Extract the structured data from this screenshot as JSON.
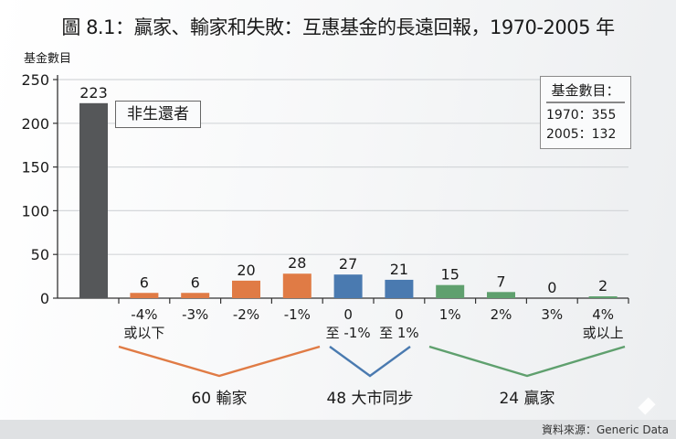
{
  "title": "圖 8.1：贏家、輸家和失敗：互惠基金的長遠回報，1970-2005 年",
  "y_axis_label": "基金數目",
  "annotation": "非生還者",
  "legend": {
    "title": "基金數目：",
    "lines": [
      "1970：355",
      "2005：132"
    ]
  },
  "source": "資料來源：Generic Data",
  "groups": [
    {
      "label": "60 輸家",
      "color": "#e07b45"
    },
    {
      "label": "48 大市同步",
      "color": "#4a7ab0"
    },
    {
      "label": "24 贏家",
      "color": "#5fa06e"
    }
  ],
  "chart_data": {
    "type": "bar",
    "title": "圖 8.1：贏家、輸家和失敗：互惠基金的長遠回報，1970-2005 年",
    "xlabel": "",
    "ylabel": "基金數目",
    "ylim": [
      0,
      250
    ],
    "yticks": [
      0,
      50,
      100,
      150,
      200,
      250
    ],
    "grid": true,
    "categories": [
      "非生還者",
      "-4% 或以下",
      "-3%",
      "-2%",
      "-1%",
      "0 至 -1%",
      "0 至 1%",
      "1%",
      "2%",
      "3%",
      "4% 或以上"
    ],
    "tick_labels": [
      [
        "",
        ""
      ],
      [
        "-4%",
        "或以下"
      ],
      [
        "-3%",
        ""
      ],
      [
        "-2%",
        ""
      ],
      [
        "-1%",
        ""
      ],
      [
        "0",
        "至 -1%"
      ],
      [
        "0",
        "至 1%"
      ],
      [
        "1%",
        ""
      ],
      [
        "2%",
        ""
      ],
      [
        "3%",
        ""
      ],
      [
        "4%",
        "或以上"
      ]
    ],
    "values": [
      223,
      6,
      6,
      20,
      28,
      27,
      21,
      15,
      7,
      0,
      2
    ],
    "colors": [
      "#555759",
      "#e07b45",
      "#e07b45",
      "#e07b45",
      "#e07b45",
      "#4a7ab0",
      "#4a7ab0",
      "#5fa06e",
      "#5fa06e",
      "#5fa06e",
      "#5fa06e"
    ],
    "group_brackets": [
      {
        "label": "60 輸家",
        "from": 1,
        "to": 4
      },
      {
        "label": "48 大市同步",
        "from": 5,
        "to": 6
      },
      {
        "label": "24 贏家",
        "from": 7,
        "to": 10
      }
    ],
    "legend_box": [
      "基金數目：",
      "1970：355",
      "2005：132"
    ]
  }
}
